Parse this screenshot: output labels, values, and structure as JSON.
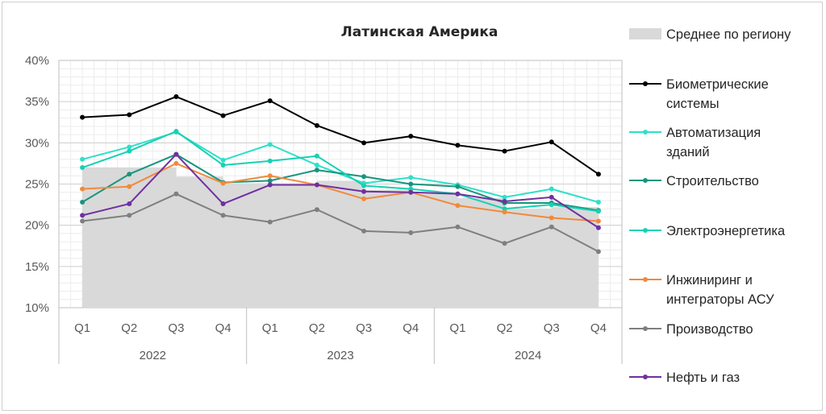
{
  "chart_data": {
    "type": "line",
    "title": "Латинская Америка",
    "xlabel": "",
    "ylabel": "",
    "ylim": [
      0.1,
      0.4
    ],
    "yticks": [
      "10%",
      "15%",
      "20%",
      "25%",
      "30%",
      "35%",
      "40%"
    ],
    "grid": true,
    "legend_position": "right",
    "categories": [
      "Q1",
      "Q2",
      "Q3",
      "Q4",
      "Q1",
      "Q2",
      "Q3",
      "Q4",
      "Q1",
      "Q2",
      "Q3",
      "Q4"
    ],
    "years": [
      "2022",
      "2023",
      "2024"
    ],
    "area": {
      "name": "Среднее по региону",
      "color": "#d9d9d9",
      "values": [
        0.27,
        0.27,
        0.259,
        0.251,
        0.251,
        0.254,
        0.243,
        0.238,
        0.233,
        0.22,
        0.222,
        0.216
      ]
    },
    "series": [
      {
        "name": "Биометрические системы",
        "legend_lines": [
          "Биометрические",
          "системы"
        ],
        "color": "#000000",
        "values": [
          0.331,
          0.334,
          0.356,
          0.333,
          0.351,
          0.321,
          0.3,
          0.308,
          0.297,
          0.29,
          0.301,
          0.262
        ]
      },
      {
        "name": "Автоматизация зданий",
        "legend_lines": [
          "Автоматизация",
          "зданий"
        ],
        "color": "#2ee0c8",
        "values": [
          0.28,
          0.295,
          0.313,
          0.279,
          0.298,
          0.273,
          0.251,
          0.258,
          0.249,
          0.234,
          0.244,
          0.228
        ]
      },
      {
        "name": "Строительство",
        "legend_lines": [
          "Строительство"
        ],
        "color": "#16957e",
        "values": [
          0.228,
          0.262,
          0.286,
          0.252,
          0.254,
          0.267,
          0.259,
          0.25,
          0.247,
          0.227,
          0.227,
          0.218
        ]
      },
      {
        "name": "Электроэнергетика",
        "legend_lines": [
          "Электроэнергетика"
        ],
        "color": "#16d1b3",
        "values": [
          0.27,
          0.29,
          0.314,
          0.273,
          0.278,
          0.284,
          0.248,
          0.244,
          0.238,
          0.22,
          0.225,
          0.217
        ]
      },
      {
        "name": "Инжиниринг и интеграторы АСУ",
        "legend_lines": [
          "Инжиниринг и",
          "интеграторы АСУ"
        ],
        "color": "#f08a3c",
        "values": [
          0.244,
          0.247,
          0.275,
          0.251,
          0.26,
          0.249,
          0.232,
          0.24,
          0.224,
          0.216,
          0.209,
          0.205
        ]
      },
      {
        "name": "Производство",
        "legend_lines": [
          "Производство"
        ],
        "color": "#7f7f7f",
        "values": [
          0.205,
          0.212,
          0.238,
          0.212,
          0.204,
          0.219,
          0.193,
          0.191,
          0.198,
          0.178,
          0.198,
          0.168
        ]
      },
      {
        "name": "Нефть и газ",
        "legend_lines": [
          "Нефть и газ"
        ],
        "color": "#7030a0",
        "values": [
          0.212,
          0.226,
          0.286,
          0.226,
          0.249,
          0.249,
          0.241,
          0.24,
          0.238,
          0.229,
          0.234,
          0.197
        ]
      }
    ]
  }
}
